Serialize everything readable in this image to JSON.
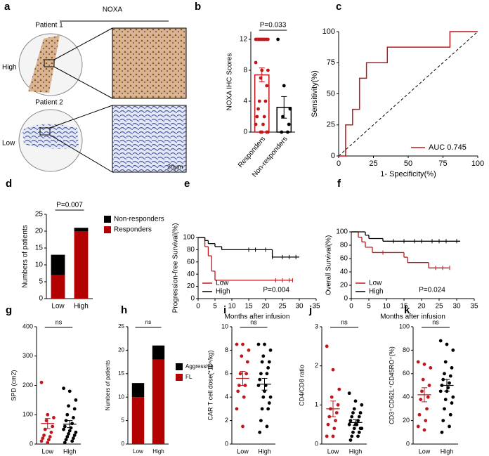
{
  "panel_a": {
    "label": "a",
    "title": "NOXA",
    "rows": [
      {
        "group": "High",
        "patient": "Patient 1"
      },
      {
        "group": "Low",
        "patient": "Patient 2"
      }
    ],
    "scale_bar": "20μm"
  },
  "chart_data": [
    {
      "panel_label": "b",
      "type": "dotplot",
      "bar": true,
      "ylabel": "NOXA IHC Scores",
      "annotation": "P=0.033",
      "categories": [
        "Responders",
        "Non-responders"
      ],
      "colors": [
        "#c0171d",
        "#000000"
      ],
      "groups": [
        [
          12,
          12,
          12,
          12,
          12,
          12,
          12,
          12,
          12,
          12,
          12,
          9,
          8,
          8,
          7,
          6,
          4,
          4,
          3,
          2,
          2,
          1,
          1,
          0,
          0,
          0,
          0
        ],
        [
          12,
          6,
          3,
          2,
          1,
          0,
          0
        ]
      ],
      "means": [
        7.4,
        3.2
      ],
      "sems": [
        0.9,
        1.4
      ],
      "ylim": [
        0,
        13
      ],
      "yticks": [
        0,
        4,
        8,
        12
      ]
    },
    {
      "panel_label": "c",
      "type": "line",
      "xlabel": "1- Specificity(%)",
      "ylabel": "Sensitivity(%)",
      "x": [
        0,
        5,
        5,
        10,
        10,
        15,
        15,
        20,
        20,
        35,
        35,
        80,
        80,
        100
      ],
      "series": [
        {
          "name": "AUC 0.745",
          "color": "#c0171d",
          "values": [
            0,
            0,
            25,
            25,
            37.5,
            37.5,
            62.5,
            62.5,
            75,
            75,
            87.5,
            87.5,
            100,
            100
          ]
        }
      ],
      "xlim": [
        0,
        100
      ],
      "ylim": [
        0,
        100
      ],
      "xticks": [
        0,
        25,
        50,
        75,
        100
      ],
      "yticks": [
        0,
        25,
        50,
        75,
        100
      ]
    },
    {
      "panel_label": "d",
      "type": "stackedbar",
      "ylabel": "Numbers of patients",
      "annotation": "P=0.007",
      "categories": [
        "Low",
        "High"
      ],
      "series": [
        {
          "name": "Non-responders",
          "color": "#000000",
          "values": [
            6,
            1
          ]
        },
        {
          "name": "Responders",
          "color": "#b30000",
          "values": [
            7,
            20
          ]
        }
      ],
      "ylim": [
        0,
        25
      ],
      "yticks": [
        0,
        5,
        10,
        15,
        20,
        25
      ]
    },
    {
      "panel_label": "e",
      "type": "survival",
      "xlabel": "Months after infusion",
      "ylabel": "Progression-free Survival(%)",
      "annotation": "P=0.004",
      "series": [
        {
          "name": "Low",
          "color": "#c0171d",
          "x": [
            0,
            2,
            3,
            4,
            5,
            28
          ],
          "values": [
            100,
            85,
            70,
            45,
            30,
            30
          ],
          "censored": [
            23,
            25,
            27,
            28
          ]
        },
        {
          "name": "High",
          "color": "#000000",
          "x": [
            0,
            2,
            3,
            5,
            7,
            22,
            30
          ],
          "values": [
            100,
            95,
            90,
            85,
            80,
            68,
            68
          ],
          "censored": [
            15,
            17,
            20,
            22,
            25,
            27,
            29
          ]
        }
      ],
      "xlim": [
        0,
        35
      ],
      "ylim": [
        0,
        100
      ],
      "xticks": [
        0,
        5,
        10,
        15,
        20,
        25,
        30,
        35
      ],
      "yticks": [
        0,
        20,
        40,
        60,
        80,
        100
      ]
    },
    {
      "panel_label": "f",
      "type": "survival",
      "xlabel": "Months after infusion",
      "ylabel": "Overall Survival(%)",
      "annotation": "P=0.024",
      "series": [
        {
          "name": "Low",
          "color": "#c0171d",
          "x": [
            0,
            2,
            3,
            4,
            6,
            15,
            16,
            22,
            28
          ],
          "values": [
            100,
            92,
            85,
            77,
            69,
            62,
            54,
            46,
            46
          ],
          "censored": [
            9,
            24,
            26,
            28
          ]
        },
        {
          "name": "High",
          "color": "#000000",
          "x": [
            0,
            4,
            5,
            9,
            31
          ],
          "values": [
            100,
            95,
            90,
            86,
            86
          ],
          "censored": [
            12,
            15,
            18,
            20,
            23,
            25,
            27,
            30
          ]
        }
      ],
      "xlim": [
        0,
        35
      ],
      "ylim": [
        0,
        100
      ],
      "xticks": [
        0,
        5,
        10,
        15,
        20,
        25,
        30,
        35
      ],
      "yticks": [
        0,
        20,
        40,
        60,
        80,
        100
      ]
    },
    {
      "panel_label": "g",
      "type": "dotplot",
      "ylabel": "SPD (cm2)",
      "annotation": "ns",
      "categories": [
        "Low",
        "High"
      ],
      "colors": [
        "#c0171d",
        "#000000"
      ],
      "groups": [
        [
          210,
          100,
          90,
          80,
          60,
          50,
          40,
          30,
          25,
          20,
          15,
          10,
          5
        ],
        [
          190,
          180,
          150,
          130,
          120,
          100,
          90,
          80,
          70,
          60,
          55,
          50,
          45,
          40,
          35,
          30,
          25,
          20,
          15,
          10,
          5
        ]
      ],
      "means": [
        70,
        68
      ],
      "sems": [
        17,
        12
      ],
      "ylim": [
        0,
        400
      ],
      "yticks": [
        0,
        100,
        200,
        300,
        400
      ]
    },
    {
      "panel_label": "h",
      "type": "stackedbar",
      "ylabel": "Numbers of patients",
      "annotation": "ns",
      "categories": [
        "Low",
        "High"
      ],
      "series": [
        {
          "name": "Aggressive",
          "color": "#000000",
          "values": [
            3,
            3
          ]
        },
        {
          "name": "FL",
          "color": "#b30000",
          "values": [
            10,
            18
          ]
        }
      ],
      "ylim": [
        0,
        25
      ],
      "yticks": [
        0,
        5,
        10,
        15,
        20,
        25
      ]
    },
    {
      "panel_label": "i",
      "type": "dotplot",
      "ylabel": "CAR T cell dose(*10⁶/kg)",
      "annotation": "ns",
      "categories": [
        "Low",
        "High"
      ],
      "colors": [
        "#c0171d",
        "#000000"
      ],
      "groups": [
        [
          8.5,
          8.5,
          8,
          7.5,
          7,
          6,
          6,
          5,
          5,
          4.5,
          4,
          3,
          1.5
        ],
        [
          8.5,
          8.5,
          8,
          7.5,
          7,
          7,
          6.5,
          6,
          6,
          5.5,
          5,
          5,
          4.5,
          4,
          4,
          3.5,
          3,
          3,
          2,
          1.5,
          1
        ]
      ],
      "means": [
        5.6,
        5.1
      ],
      "sems": [
        0.6,
        0.5
      ],
      "ylim": [
        0,
        10
      ],
      "yticks": [
        0,
        2,
        4,
        6,
        8,
        10
      ]
    },
    {
      "panel_label": "j",
      "type": "dotplot",
      "ylabel": "CD4/CD8 ratio",
      "annotation": "ns",
      "categories": [
        "Low",
        "High"
      ],
      "colors": [
        "#c0171d",
        "#000000"
      ],
      "groups": [
        [
          2.5,
          1.9,
          1.4,
          1.2,
          1.0,
          0.9,
          0.8,
          0.7,
          0.6,
          0.5,
          0.4,
          0.2,
          0.2
        ],
        [
          1.3,
          1.1,
          1.0,
          0.9,
          0.8,
          0.8,
          0.7,
          0.7,
          0.6,
          0.6,
          0.5,
          0.5,
          0.5,
          0.4,
          0.4,
          0.4,
          0.3,
          0.3,
          0.2,
          0.2,
          0.1
        ]
      ],
      "means": [
        0.9,
        0.55
      ],
      "sems": [
        0.2,
        0.07
      ],
      "ylim": [
        0,
        3
      ],
      "yticks": [
        0,
        1,
        2,
        3
      ]
    },
    {
      "panel_label": "k",
      "type": "dotplot",
      "ylabel": "CD3⁺CD62L⁺CD45RO⁺(%)",
      "annotation": "ns",
      "categories": [
        "Low",
        "High"
      ],
      "colors": [
        "#c0171d",
        "#000000"
      ],
      "groups": [
        [
          70,
          68,
          65,
          55,
          50,
          45,
          40,
          38,
          30,
          25,
          20,
          15,
          12
        ],
        [
          88,
          85,
          80,
          70,
          65,
          60,
          58,
          55,
          52,
          50,
          48,
          45,
          45,
          40,
          38,
          35,
          30,
          25,
          20,
          15,
          10
        ]
      ],
      "means": [
        42,
        50
      ],
      "sems": [
        6,
        5
      ],
      "ylim": [
        0,
        100
      ],
      "yticks": [
        0,
        20,
        40,
        60,
        80,
        100
      ]
    }
  ]
}
